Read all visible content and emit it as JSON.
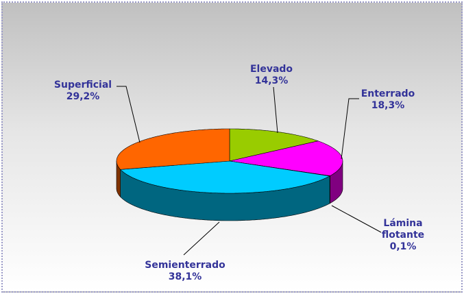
{
  "chart_data": {
    "type": "pie3d",
    "categories": [
      "Elevado",
      "Enterrado",
      "Lámina flotante",
      "Semienterrado",
      "Superficial"
    ],
    "values": [
      14.3,
      18.3,
      0.1,
      38.1,
      29.2
    ],
    "value_labels": [
      "14,3%",
      "18,3%",
      "0,1%",
      "38,1%",
      "29,2%"
    ],
    "colors": [
      "#99cc00",
      "#ff00ff",
      "#800080",
      "#00ccff",
      "#ff6600"
    ]
  }
}
